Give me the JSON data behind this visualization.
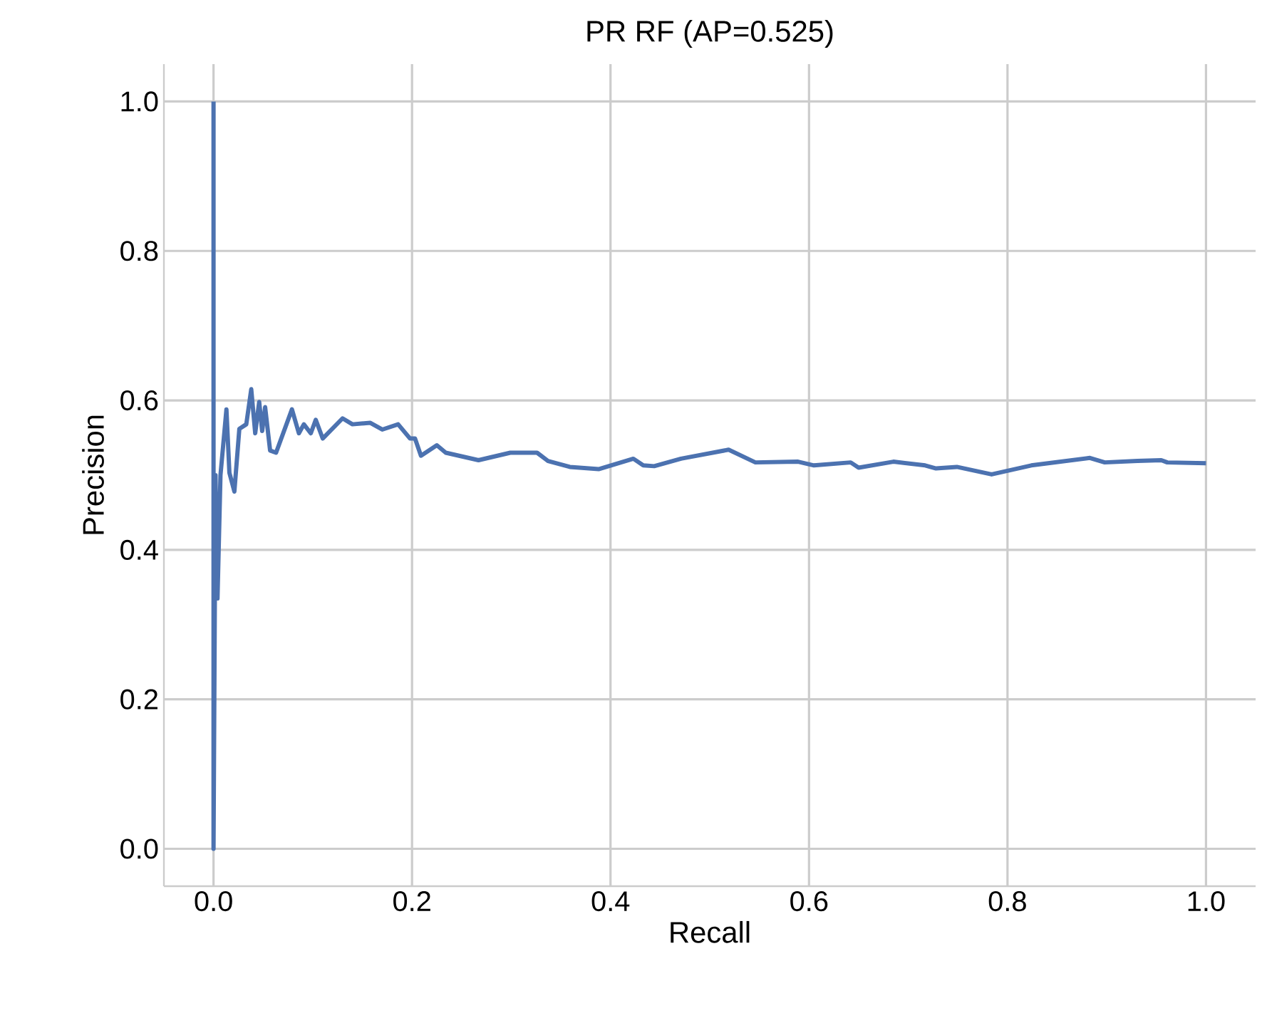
{
  "chart_data": {
    "type": "line",
    "title": "PR RF (AP=0.525)",
    "xlabel": "Recall",
    "ylabel": "Precision",
    "xlim": [
      -0.05,
      1.05
    ],
    "ylim": [
      -0.05,
      1.05
    ],
    "xticks": [
      {
        "value": 0,
        "label": "0.0"
      },
      0.2,
      0.4,
      0.6,
      0.8,
      {
        "value": 1,
        "label": "1.0"
      }
    ],
    "yticks": [
      {
        "value": 0,
        "label": "0.0"
      },
      0.2,
      0.4,
      0.6,
      0.8,
      {
        "value": 1,
        "label": "1.0"
      }
    ],
    "grid": true,
    "marker": "none",
    "line_style": "solid",
    "series": [
      {
        "color": "#4c72b0",
        "x": [
          0,
          0,
          0.002,
          0.004,
          0.007,
          0.013,
          0.016,
          0.021,
          0.026,
          0.033,
          0.038,
          0.042,
          0.046,
          0.049,
          0.052,
          0.057,
          0.063,
          0.079,
          0.086,
          0.091,
          0.098,
          0.103,
          0.11,
          0.13,
          0.14,
          0.158,
          0.17,
          0.186,
          0.198,
          0.203,
          0.209,
          0.225,
          0.234,
          0.267,
          0.299,
          0.326,
          0.337,
          0.359,
          0.388,
          0.423,
          0.433,
          0.444,
          0.471,
          0.519,
          0.546,
          0.589,
          0.605,
          0.642,
          0.65,
          0.685,
          0.717,
          0.728,
          0.749,
          0.784,
          0.824,
          0.883,
          0.898,
          0.931,
          0.955,
          0.961,
          1.0
        ],
        "values": [
          1.0,
          0.0,
          0.5,
          0.335,
          0.5,
          0.588,
          0.503,
          0.478,
          0.562,
          0.568,
          0.615,
          0.556,
          0.598,
          0.559,
          0.591,
          0.533,
          0.53,
          0.588,
          0.556,
          0.568,
          0.556,
          0.574,
          0.549,
          0.576,
          0.568,
          0.57,
          0.561,
          0.568,
          0.549,
          0.549,
          0.526,
          0.54,
          0.53,
          0.52,
          0.53,
          0.53,
          0.519,
          0.511,
          0.508,
          0.522,
          0.513,
          0.512,
          0.522,
          0.534,
          0.517,
          0.518,
          0.513,
          0.517,
          0.51,
          0.518,
          0.513,
          0.509,
          0.511,
          0.501,
          0.513,
          0.523,
          0.517,
          0.519,
          0.52,
          0.517,
          0.516
        ]
      }
    ]
  }
}
